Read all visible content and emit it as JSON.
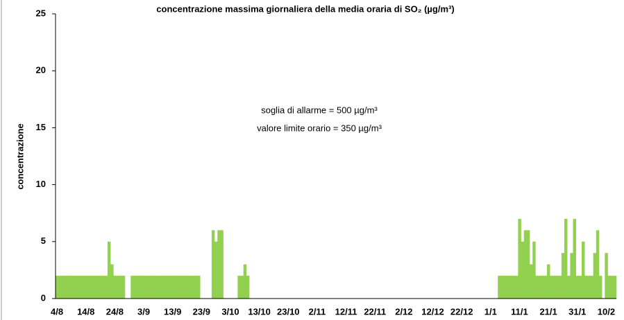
{
  "chart_data": {
    "type": "bar",
    "title": "concentrazione massima giornaliera della media oraria di SO₂ (µg/m³)",
    "y_label": "concentrazione",
    "annotations": [
      "soglia di allarme = 500 µg/m³",
      "valore limite orario = 350 µg/m³"
    ],
    "color": "#92d050",
    "grid": false,
    "ylim": [
      0,
      25
    ],
    "yticks": [
      0,
      5,
      10,
      15,
      20,
      25
    ],
    "categories": [
      "4/8",
      null,
      null,
      null,
      null,
      null,
      null,
      null,
      null,
      null,
      "14/8",
      null,
      null,
      null,
      null,
      null,
      null,
      null,
      null,
      null,
      "24/8",
      null,
      null,
      null,
      null,
      null,
      null,
      null,
      null,
      null,
      "3/9",
      null,
      null,
      null,
      null,
      null,
      null,
      null,
      null,
      null,
      "13/9",
      null,
      null,
      null,
      null,
      null,
      null,
      null,
      null,
      null,
      "23/9",
      null,
      null,
      null,
      null,
      null,
      null,
      null,
      null,
      null,
      "3/10",
      null,
      null,
      null,
      null,
      null,
      null,
      null,
      null,
      null,
      "13/10",
      null,
      null,
      null,
      null,
      null,
      null,
      null,
      null,
      null,
      "23/10",
      null,
      null,
      null,
      null,
      null,
      null,
      null,
      null,
      null,
      "2/11",
      null,
      null,
      null,
      null,
      null,
      null,
      null,
      null,
      null,
      "12/11",
      null,
      null,
      null,
      null,
      null,
      null,
      null,
      null,
      null,
      "22/11",
      null,
      null,
      null,
      null,
      null,
      null,
      null,
      null,
      null,
      "2/12",
      null,
      null,
      null,
      null,
      null,
      null,
      null,
      null,
      null,
      "12/12",
      null,
      null,
      null,
      null,
      null,
      null,
      null,
      null,
      null,
      "22/12",
      null,
      null,
      null,
      null,
      null,
      null,
      null,
      null,
      null,
      "1/1",
      null,
      null,
      null,
      null,
      null,
      null,
      null,
      null,
      null,
      "11/1",
      null,
      null,
      null,
      null,
      null,
      null,
      null,
      null,
      null,
      "21/1",
      null,
      null,
      null,
      null,
      null,
      null,
      null,
      null,
      null,
      "31/1",
      null,
      null,
      null,
      null,
      null,
      null,
      null,
      null,
      null,
      "10/2",
      null,
      null,
      null
    ],
    "values": [
      2,
      2,
      2,
      2,
      2,
      2,
      2,
      2,
      2,
      2,
      2,
      2,
      2,
      2,
      2,
      2,
      2,
      2,
      5,
      3,
      2,
      2,
      2,
      2,
      null,
      null,
      2,
      2,
      2,
      2,
      2,
      2,
      2,
      2,
      2,
      2,
      2,
      2,
      2,
      2,
      2,
      2,
      2,
      2,
      2,
      2,
      2,
      2,
      2,
      2,
      null,
      null,
      null,
      null,
      6,
      5,
      6,
      6,
      null,
      null,
      null,
      null,
      null,
      2,
      2,
      3,
      2,
      null,
      null,
      null,
      null,
      null,
      null,
      null,
      null,
      null,
      null,
      null,
      null,
      null,
      null,
      null,
      null,
      null,
      null,
      null,
      null,
      null,
      null,
      null,
      null,
      null,
      null,
      null,
      null,
      null,
      null,
      null,
      null,
      null,
      null,
      null,
      null,
      null,
      null,
      null,
      null,
      null,
      null,
      null,
      null,
      null,
      null,
      null,
      null,
      null,
      null,
      null,
      null,
      null,
      null,
      null,
      null,
      null,
      null,
      null,
      null,
      null,
      null,
      null,
      null,
      null,
      null,
      null,
      null,
      null,
      null,
      null,
      null,
      null,
      null,
      null,
      null,
      null,
      null,
      null,
      null,
      null,
      null,
      null,
      null,
      null,
      null,
      2,
      2,
      2,
      2,
      2,
      2,
      2,
      7,
      5,
      6,
      6,
      3,
      5,
      2,
      2,
      2,
      2,
      3,
      2,
      2,
      2,
      2,
      4,
      7,
      2,
      4,
      7,
      2,
      2,
      5,
      2,
      2,
      2,
      4,
      6,
      2,
      null,
      4,
      2,
      2,
      2
    ]
  }
}
